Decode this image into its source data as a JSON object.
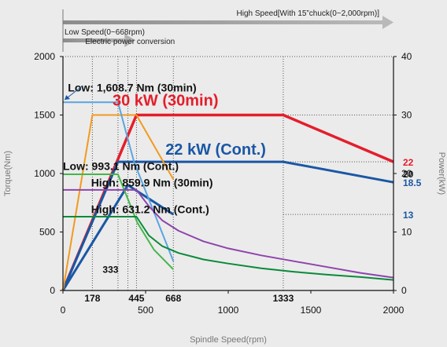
{
  "chart_data": {
    "type": "line",
    "xlabel": "Spindle Speed(rpm)",
    "ylabel_left": "Torque(Nm)",
    "ylabel_right": "Power(kW)",
    "xlim": [
      0,
      2000
    ],
    "ylim_left": [
      0,
      2000
    ],
    "ylim_right": [
      0,
      40
    ],
    "x_ticks": [
      "0",
      "500",
      "1000",
      "1500",
      "2000"
    ],
    "x_ticks_values": [
      0,
      500,
      1000,
      1500,
      2000
    ],
    "y_left_ticks": [
      "0",
      "500",
      "1000",
      "1500",
      "2000"
    ],
    "y_left_ticks_values": [
      0,
      500,
      1000,
      1500,
      2000
    ],
    "y_right_ticks": [
      "0",
      "10",
      "20",
      "30",
      "40"
    ],
    "y_right_ticks_values": [
      0,
      10,
      20,
      30,
      40
    ],
    "special_x_ticks": [
      "178",
      "445",
      "668",
      "1333"
    ],
    "special_x_values": [
      178,
      445,
      668,
      1333
    ],
    "dotted_x": [
      178,
      333,
      393,
      445,
      668,
      1333
    ],
    "dotted_y_power": [
      30,
      22,
      13
    ],
    "ranges": [
      {
        "label": "High Speed[With 15”chuck(0~2,000rpm)]",
        "from": 0,
        "to": 2000
      },
      {
        "label": "Low Speed(0~668rpm)",
        "from": 0,
        "to": 668
      },
      {
        "label": "Electric power conversion",
        "from": 0,
        "to": 668
      }
    ],
    "series": [
      {
        "color": "#e41e2b",
        "axis": "power",
        "width": 3.5,
        "x": [
          0,
          445,
          1333,
          2000
        ],
        "y": [
          0,
          30,
          30,
          22
        ]
      },
      {
        "color": "#1a57a5",
        "axis": "power",
        "width": 3,
        "x": [
          0,
          333,
          1333,
          2000
        ],
        "y": [
          0,
          22,
          22,
          18.5
        ]
      },
      {
        "color": "#1a57a5",
        "axis": "power",
        "width": 3,
        "x": [
          0,
          393,
          668
        ],
        "y": [
          0,
          18,
          13
        ]
      },
      {
        "color": "#f29a1f",
        "axis": "torque",
        "width": 2,
        "x": [
          0,
          178,
          445,
          668
        ],
        "y": [
          0,
          1500,
          1500,
          950
        ]
      },
      {
        "color": "#5ba4e0",
        "axis": "torque",
        "width": 2,
        "x": [
          0,
          178,
          333,
          430,
          668
        ],
        "y": [
          1608.7,
          1608.7,
          1608.7,
          1100,
          250
        ]
      },
      {
        "color": "#45b649",
        "axis": "torque",
        "width": 2,
        "x": [
          0,
          178,
          333,
          450,
          550,
          668
        ],
        "y": [
          993.1,
          993.1,
          993.1,
          580,
          350,
          180
        ]
      },
      {
        "color": "#8e44ad",
        "axis": "torque",
        "width": 2,
        "x": [
          0,
          300,
          445,
          520,
          600,
          700,
          850,
          1000,
          1200,
          1400,
          1600,
          1800,
          2000
        ],
        "y": [
          859.9,
          859.9,
          859.9,
          720,
          600,
          510,
          420,
          360,
          300,
          250,
          200,
          150,
          110
        ]
      },
      {
        "color": "#0a8a3a",
        "axis": "torque",
        "width": 2,
        "x": [
          0,
          300,
          445,
          520,
          600,
          700,
          850,
          1000,
          1200,
          1400,
          1600,
          1800,
          2000
        ],
        "y": [
          631.2,
          631.2,
          631.2,
          470,
          380,
          320,
          265,
          230,
          190,
          160,
          135,
          115,
          90
        ]
      }
    ],
    "annotations": [
      {
        "text": "Low: 1,608.7 Nm (30min)",
        "x": 30,
        "y": 1700,
        "color": "#111111",
        "size": 14
      },
      {
        "text": "30 kW (30min)",
        "x": 300,
        "y": 1580,
        "color": "#e41e2b",
        "size": 20
      },
      {
        "text": "22 kW (Cont.)",
        "x": 620,
        "y": 1160,
        "color": "#1a57a5",
        "size": 20
      },
      {
        "text": "Low: 993.1 Nm (Cont.)",
        "x": 0,
        "y": 1030,
        "color": "#111111",
        "size": 14
      },
      {
        "text": "High: 859.9 Nm (30min)",
        "x": 170,
        "y": 890,
        "color": "#111111",
        "size": 14
      },
      {
        "text": "High: 631.2 Nm (Cont.)",
        "x": 170,
        "y": 660,
        "color": "#111111",
        "size": 14
      },
      {
        "text": "333",
        "x": 240,
        "y": 150,
        "color": "#111111",
        "size": 12
      }
    ],
    "right_labels": [
      {
        "text": "22",
        "value": 22,
        "color": "#e41e2b"
      },
      {
        "text": "20",
        "value": 20,
        "color": "#111111"
      },
      {
        "text": "18.5",
        "value": 18.5,
        "color": "#1a57a5"
      },
      {
        "text": "13",
        "value": 13,
        "color": "#1a57a5"
      }
    ],
    "grid": false,
    "legend": "none"
  }
}
